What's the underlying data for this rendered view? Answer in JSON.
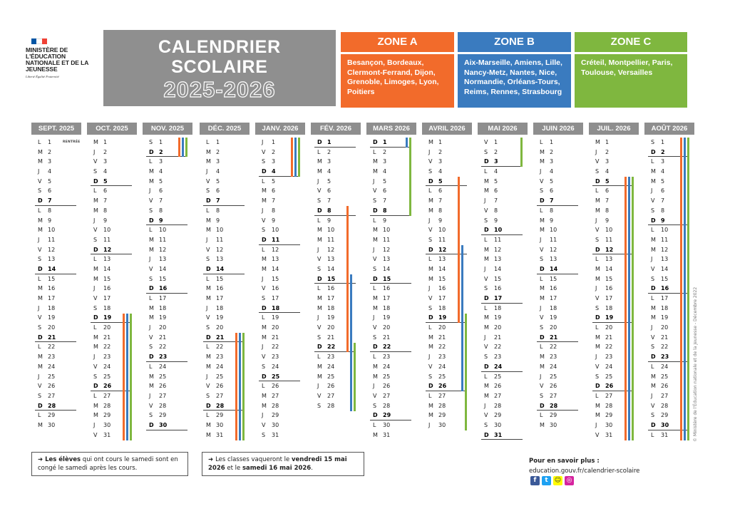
{
  "header": {
    "ministry": "MINISTÈRE DE L'ÉDUCATION NATIONALE ET DE LA JEUNESSE",
    "motto": "Liberté Égalité Fraternité",
    "title_line1": "CALENDRIER",
    "title_line2": "SCOLAIRE",
    "years": "2025-2026"
  },
  "colors": {
    "zone_a": "#f26b2b",
    "zone_b": "#3a7bbf",
    "zone_c": "#7fb73f",
    "month_header": "#8e8e8e",
    "title_box": "#8f8f8f"
  },
  "zones": [
    {
      "name": "ZONE A",
      "cities": "Besançon, Bordeaux, Clermont-Ferrand, Dijon, Grenoble, Limoges, Lyon, Poitiers"
    },
    {
      "name": "ZONE B",
      "cities": "Aix-Marseille, Amiens, Lille, Nancy-Metz, Nantes, Nice, Normandie, Orléans-Tours, Reims, Rennes, Strasbourg"
    },
    {
      "name": "ZONE C",
      "cities": "Créteil, Montpellier, Paris, Toulouse, Versailles"
    }
  ],
  "months": [
    {
      "name": "SEPT. 2025",
      "first_weekday": 0,
      "days": 30,
      "rentree_label": "RENTRÉE"
    },
    {
      "name": "OCT. 2025",
      "first_weekday": 2,
      "days": 31
    },
    {
      "name": "NOV. 2025",
      "first_weekday": 5,
      "days": 30
    },
    {
      "name": "DÉC. 2025",
      "first_weekday": 0,
      "days": 31
    },
    {
      "name": "JANV. 2026",
      "first_weekday": 3,
      "days": 31
    },
    {
      "name": "FÉV. 2026",
      "first_weekday": 6,
      "days": 28
    },
    {
      "name": "MARS 2026",
      "first_weekday": 6,
      "days": 31
    },
    {
      "name": "AVRIL 2026",
      "first_weekday": 2,
      "days": 30
    },
    {
      "name": "MAI 2026",
      "first_weekday": 4,
      "days": 31
    },
    {
      "name": "JUIN 2026",
      "first_weekday": 0,
      "days": 30
    },
    {
      "name": "JUIL. 2026",
      "first_weekday": 2,
      "days": 31
    },
    {
      "name": "AOÛT 2026",
      "first_weekday": 5,
      "days": 31
    }
  ],
  "weekday_letters": [
    "L",
    "M",
    "M",
    "J",
    "V",
    "S",
    "D"
  ],
  "holidays": {
    "oct_nov": {
      "zones": [
        "A",
        "B",
        "C"
      ],
      "start": "2025-10-19",
      "end": "2025-11-02"
    },
    "noel": {
      "zones": [
        "A",
        "B",
        "C"
      ],
      "start": "2025-12-21",
      "end": "2026-01-04"
    },
    "hiver": [
      {
        "zone": "A",
        "start": "2026-02-08",
        "end": "2026-02-22"
      },
      {
        "zone": "B",
        "start": "2026-02-15",
        "end": "2026-03-01"
      },
      {
        "zone": "C",
        "start": "2026-02-22",
        "end": "2026-03-08"
      }
    ],
    "printemps": [
      {
        "zone": "A",
        "start": "2026-04-05",
        "end": "2026-04-19"
      },
      {
        "zone": "B",
        "start": "2026-04-12",
        "end": "2026-04-26"
      },
      {
        "zone": "C",
        "start": "2026-04-19",
        "end": "2026-05-03"
      }
    ],
    "ete": {
      "zones": [
        "A",
        "B",
        "C"
      ],
      "start": "2026-07-05",
      "end": "2026-08-31"
    }
  },
  "notes": [
    {
      "prefix": "Les élèves",
      "text": " qui ont cours le samedi sont en congé le samedi après les cours."
    },
    {
      "prefix": "Les classes vaqueront le ",
      "bold1": "vendredi 15 mai 2026",
      "mid": " et le ",
      "bold2": "samedi 16 mai 2026",
      "end": "."
    }
  ],
  "more_info": {
    "title": "Pour en savoir plus :",
    "url": "education.gouv.fr/calendrier-scolaire"
  },
  "social_icons": [
    "facebook-icon",
    "twitter-icon",
    "snapchat-icon",
    "instagram-icon"
  ],
  "copyright": "© Ministère de l'Éducation nationale et de la Jeunesse - Décembre 2022"
}
